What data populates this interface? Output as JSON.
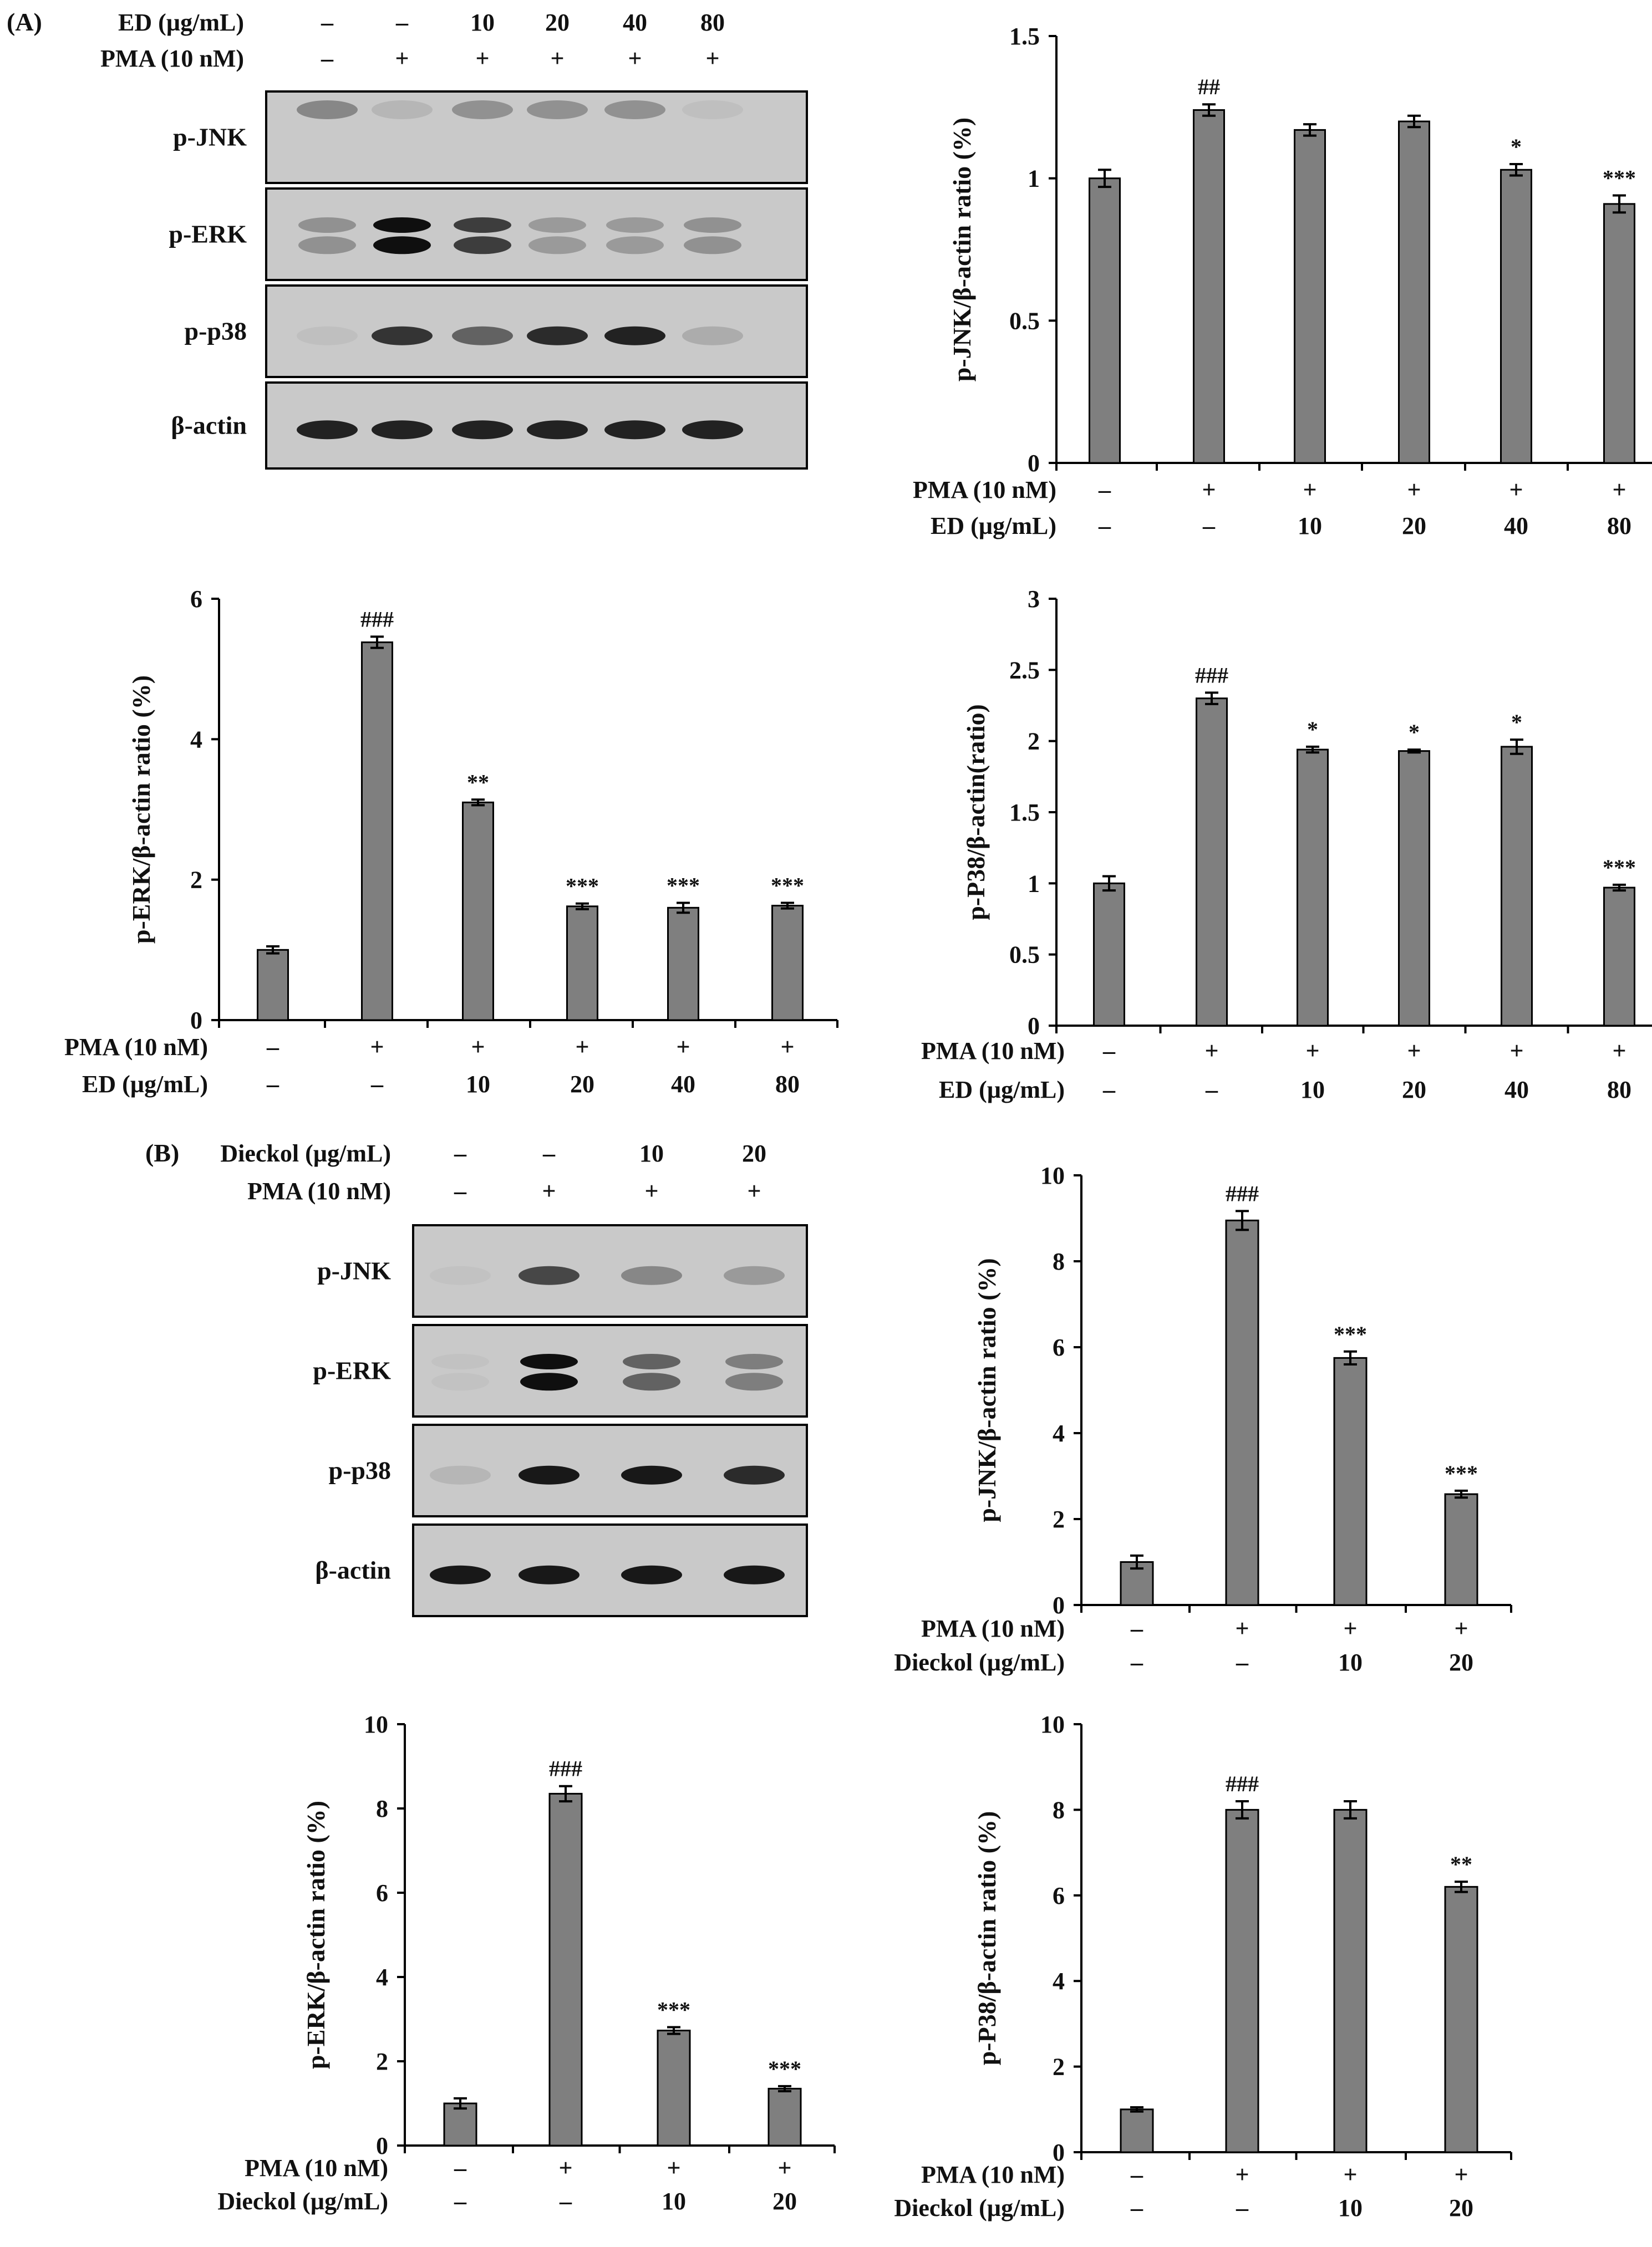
{
  "figure": {
    "panelA": {
      "label": "(A)",
      "treatment_header": {
        "ed_label": "ED (µg/mL)",
        "ed_values": [
          "–",
          "–",
          "10",
          "20",
          "40",
          "80"
        ],
        "pma_label": "PMA (10 nM)",
        "pma_values": [
          "–",
          "+",
          "+",
          "+",
          "+",
          "+"
        ]
      },
      "blots": [
        {
          "name": "p-JNK",
          "bands": [
            0.35,
            0.1,
            0.3,
            0.3,
            0.3,
            0.05
          ]
        },
        {
          "name": "p-ERK",
          "bands": [
            0.3,
            1.0,
            0.75,
            0.25,
            0.25,
            0.3
          ]
        },
        {
          "name": "p-p38",
          "bands": [
            0.05,
            0.8,
            0.55,
            0.85,
            0.9,
            0.15
          ]
        },
        {
          "name": "β-actin",
          "bands": [
            0.9,
            0.9,
            0.9,
            0.9,
            0.9,
            0.9
          ]
        }
      ]
    },
    "panelB": {
      "label": "(B)",
      "treatment_header": {
        "dieckol_label": "Dieckol (µg/mL)",
        "dieckol_values": [
          "–",
          "–",
          "10",
          "20"
        ],
        "pma_label": "PMA (10 nM)",
        "pma_values": [
          "–",
          "+",
          "+",
          "+"
        ]
      },
      "blots": [
        {
          "name": "p-JNK",
          "bands": [
            0.03,
            0.7,
            0.35,
            0.25
          ]
        },
        {
          "name": "p-ERK",
          "bands": [
            0.03,
            1.0,
            0.55,
            0.4
          ]
        },
        {
          "name": "p-p38",
          "bands": [
            0.1,
            0.95,
            0.95,
            0.85
          ]
        },
        {
          "name": "β-actin",
          "bands": [
            0.95,
            0.95,
            0.95,
            0.95
          ]
        }
      ]
    }
  },
  "chart_data": [
    {
      "id": "A-pJNK",
      "type": "bar",
      "ylabel": "p-JNK/β-actin ratio (%)",
      "ylim": [
        0,
        1.5
      ],
      "yticks": [
        "0",
        "0.5",
        "1",
        "1.5"
      ],
      "ytick_values": [
        0,
        0.5,
        1,
        1.5
      ],
      "values": [
        1.0,
        1.24,
        1.17,
        1.2,
        1.03,
        0.91
      ],
      "errors": [
        0.03,
        0.02,
        0.02,
        0.02,
        0.02,
        0.03
      ],
      "annotations": [
        "",
        "##",
        "",
        "",
        "*",
        "***"
      ],
      "row1_label": "PMA (10 nM)",
      "row1": [
        "–",
        "+",
        "+",
        "+",
        "+",
        "+"
      ],
      "row2_label": "ED (µg/mL)",
      "row2": [
        "–",
        "–",
        "10",
        "20",
        "40",
        "80"
      ]
    },
    {
      "id": "A-pERK",
      "type": "bar",
      "ylabel": "p-ERK/β-actin ratio (%)",
      "ylim": [
        0,
        6
      ],
      "yticks": [
        "0",
        "2",
        "4",
        "6"
      ],
      "ytick_values": [
        0,
        2,
        4,
        6
      ],
      "values": [
        1.0,
        5.38,
        3.1,
        1.62,
        1.6,
        1.63
      ],
      "errors": [
        0.05,
        0.08,
        0.04,
        0.04,
        0.07,
        0.04
      ],
      "annotations": [
        "",
        "###",
        "**",
        "***",
        "***",
        "***"
      ],
      "row1_label": "PMA (10 nM)",
      "row1": [
        "–",
        "+",
        "+",
        "+",
        "+",
        "+"
      ],
      "row2_label": "ED (µg/mL)",
      "row2": [
        "–",
        "–",
        "10",
        "20",
        "40",
        "80"
      ]
    },
    {
      "id": "A-pP38",
      "type": "bar",
      "ylabel": "p-P38/β-actin(ratio)",
      "ylim": [
        0,
        3
      ],
      "yticks": [
        "0",
        "0.5",
        "1",
        "1.5",
        "2",
        "2.5",
        "3"
      ],
      "ytick_values": [
        0,
        0.5,
        1,
        1.5,
        2,
        2.5,
        3
      ],
      "values": [
        1.0,
        2.3,
        1.94,
        1.93,
        1.96,
        0.97
      ],
      "errors": [
        0.05,
        0.04,
        0.02,
        0.01,
        0.05,
        0.02
      ],
      "annotations": [
        "",
        "###",
        "*",
        "*",
        "*",
        "***"
      ],
      "row1_label": "PMA (10 nM)",
      "row1": [
        "–",
        "+",
        "+",
        "+",
        "+",
        "+"
      ],
      "row2_label": "ED (µg/mL)",
      "row2": [
        "–",
        "–",
        "10",
        "20",
        "40",
        "80"
      ]
    },
    {
      "id": "B-pJNK",
      "type": "bar",
      "ylabel": "p-JNK/β-actin ratio (%)",
      "ylim": [
        0,
        10
      ],
      "yticks": [
        "0",
        "2",
        "4",
        "6",
        "8",
        "10"
      ],
      "ytick_values": [
        0,
        2,
        4,
        6,
        8,
        10
      ],
      "values": [
        1.0,
        8.95,
        5.75,
        2.58
      ],
      "errors": [
        0.15,
        0.22,
        0.15,
        0.08
      ],
      "annotations": [
        "",
        "###",
        "***",
        "***"
      ],
      "row1_label": "PMA (10 nM)",
      "row1": [
        "–",
        "+",
        "+",
        "+"
      ],
      "row2_label": "Dieckol (µg/mL)",
      "row2": [
        "–",
        "–",
        "10",
        "20"
      ]
    },
    {
      "id": "B-pERK",
      "type": "bar",
      "ylabel": "p-ERK/β-actin ratio (%)",
      "ylim": [
        0,
        10
      ],
      "yticks": [
        "0",
        "2",
        "4",
        "6",
        "8",
        "10"
      ],
      "ytick_values": [
        0,
        2,
        4,
        6,
        8,
        10
      ],
      "values": [
        1.0,
        8.35,
        2.73,
        1.35
      ],
      "errors": [
        0.12,
        0.18,
        0.08,
        0.06
      ],
      "annotations": [
        "",
        "###",
        "***",
        "***"
      ],
      "row1_label": "PMA (10 nM)",
      "row1": [
        "–",
        "+",
        "+",
        "+"
      ],
      "row2_label": "Dieckol (µg/mL)",
      "row2": [
        "–",
        "–",
        "10",
        "20"
      ]
    },
    {
      "id": "B-pP38",
      "type": "bar",
      "ylabel": "p-P38/β-actin ratio (%)",
      "ylim": [
        0,
        10
      ],
      "yticks": [
        "0",
        "2",
        "4",
        "6",
        "8",
        "10"
      ],
      "ytick_values": [
        0,
        2,
        4,
        6,
        8,
        10
      ],
      "values": [
        1.0,
        8.0,
        8.0,
        6.2
      ],
      "errors": [
        0.05,
        0.2,
        0.2,
        0.12
      ],
      "annotations": [
        "",
        "###",
        "",
        "**"
      ],
      "row1_label": "PMA (10 nM)",
      "row1": [
        "–",
        "+",
        "+",
        "+"
      ],
      "row2_label": "Dieckol (µg/mL)",
      "row2": [
        "–",
        "–",
        "10",
        "20"
      ]
    }
  ]
}
